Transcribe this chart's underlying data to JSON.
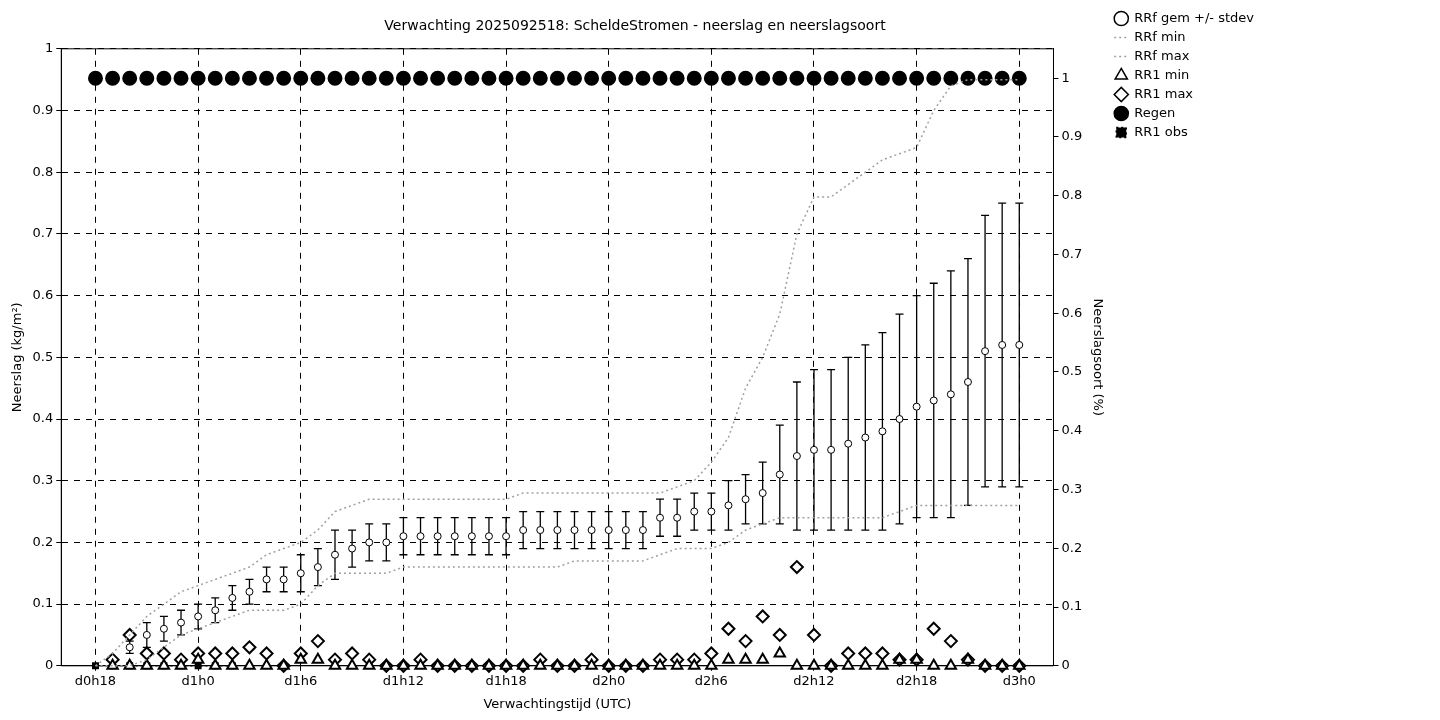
{
  "chart_data": {
    "type": "scatter",
    "title": "Verwachting 2025092518: ScheldeStromen - neerslag en neerslagsoort",
    "xlabel": "Verwachtingstijd (UTC)",
    "ylabel": "Neerslag (kg/m²)",
    "y2label": "Neerslagsoort (%)",
    "categories": [
      "d0h18",
      null,
      null,
      null,
      null,
      null,
      "d1h0",
      null,
      null,
      null,
      null,
      null,
      "d1h6",
      null,
      null,
      null,
      null,
      null,
      "d1h12",
      null,
      null,
      null,
      null,
      null,
      "d1h18",
      null,
      null,
      null,
      null,
      null,
      "d2h0",
      null,
      null,
      null,
      null,
      null,
      "d2h6",
      null,
      null,
      null,
      null,
      null,
      "d2h12",
      null,
      null,
      null,
      null,
      null,
      "d2h18",
      null,
      null,
      null,
      null,
      null,
      "d3h0"
    ],
    "ylim": [
      0,
      1
    ],
    "yticks": [
      0,
      0.1,
      0.2,
      0.3,
      0.4,
      0.5,
      0.6,
      0.7,
      0.8,
      0.9,
      1
    ],
    "y2lim": [
      0,
      1.05
    ],
    "y2ticks": [
      0,
      0.1,
      0.2,
      0.3,
      0.4,
      0.5,
      0.6,
      0.7,
      0.8,
      0.9,
      1
    ],
    "grid": true,
    "legend": "top right",
    "series": [
      {
        "name": "RRf gem +/- stdev",
        "marker": "circle",
        "color": "#000000",
        "values": [
          null,
          null,
          0.03,
          0.05,
          0.06,
          0.07,
          0.08,
          0.09,
          0.11,
          0.12,
          0.14,
          0.14,
          0.15,
          0.16,
          0.18,
          0.19,
          0.2,
          0.2,
          0.21,
          0.21,
          0.21,
          0.21,
          0.21,
          0.21,
          0.21,
          0.22,
          0.22,
          0.22,
          0.22,
          0.22,
          0.22,
          0.22,
          0.22,
          0.24,
          0.24,
          0.25,
          0.25,
          0.26,
          0.27,
          0.28,
          0.31,
          0.34,
          0.35,
          0.35,
          0.36,
          0.37,
          0.38,
          0.4,
          0.42,
          0.43,
          0.44,
          0.46,
          0.51,
          0.52,
          0.52
        ],
        "errors": [
          null,
          null,
          [
            0.02,
            0.04
          ],
          [
            0.03,
            0.07
          ],
          [
            0.04,
            0.08
          ],
          [
            0.05,
            0.09
          ],
          [
            0.06,
            0.1
          ],
          [
            0.07,
            0.11
          ],
          [
            0.09,
            0.13
          ],
          [
            0.1,
            0.14
          ],
          [
            0.12,
            0.16
          ],
          [
            0.12,
            0.16
          ],
          [
            0.12,
            0.18
          ],
          [
            0.13,
            0.19
          ],
          [
            0.14,
            0.22
          ],
          [
            0.16,
            0.22
          ],
          [
            0.17,
            0.23
          ],
          [
            0.17,
            0.23
          ],
          [
            0.18,
            0.24
          ],
          [
            0.18,
            0.24
          ],
          [
            0.18,
            0.24
          ],
          [
            0.18,
            0.24
          ],
          [
            0.18,
            0.24
          ],
          [
            0.18,
            0.24
          ],
          [
            0.18,
            0.24
          ],
          [
            0.19,
            0.25
          ],
          [
            0.19,
            0.25
          ],
          [
            0.19,
            0.25
          ],
          [
            0.19,
            0.25
          ],
          [
            0.19,
            0.25
          ],
          [
            0.19,
            0.25
          ],
          [
            0.19,
            0.25
          ],
          [
            0.19,
            0.25
          ],
          [
            0.21,
            0.27
          ],
          [
            0.21,
            0.27
          ],
          [
            0.22,
            0.28
          ],
          [
            0.22,
            0.28
          ],
          [
            0.22,
            0.3
          ],
          [
            0.23,
            0.31
          ],
          [
            0.23,
            0.33
          ],
          [
            0.23,
            0.39
          ],
          [
            0.22,
            0.46
          ],
          [
            0.22,
            0.48
          ],
          [
            0.22,
            0.48
          ],
          [
            0.22,
            0.5
          ],
          [
            0.22,
            0.52
          ],
          [
            0.22,
            0.54
          ],
          [
            0.23,
            0.57
          ],
          [
            0.24,
            0.6
          ],
          [
            0.24,
            0.62
          ],
          [
            0.24,
            0.64
          ],
          [
            0.26,
            0.66
          ],
          [
            0.29,
            0.73
          ],
          [
            0.29,
            0.75
          ],
          [
            0.29,
            0.75
          ]
        ]
      },
      {
        "name": "RRf min",
        "type": "line",
        "marker": "none",
        "line_style": "dotted",
        "color": "#a0a0a0",
        "values": [
          0,
          0,
          0,
          0.01,
          0.03,
          0.05,
          0.06,
          0.07,
          0.08,
          0.09,
          0.09,
          0.09,
          0.1,
          0.13,
          0.15,
          0.15,
          0.15,
          0.15,
          0.16,
          0.16,
          0.16,
          0.16,
          0.16,
          0.16,
          0.16,
          0.16,
          0.16,
          0.16,
          0.17,
          0.17,
          0.17,
          0.17,
          0.17,
          0.18,
          0.19,
          0.19,
          0.19,
          0.2,
          0.22,
          0.23,
          0.24,
          0.24,
          0.24,
          0.24,
          0.24,
          0.24,
          0.24,
          0.25,
          0.26,
          0.26,
          0.26,
          0.26,
          0.26,
          0.26,
          0.26
        ]
      },
      {
        "name": "RRf max",
        "type": "line",
        "marker": "none",
        "line_style": "dotted",
        "color": "#a0a0a0",
        "values": [
          0,
          0.02,
          0.05,
          0.08,
          0.1,
          0.12,
          0.13,
          0.14,
          0.15,
          0.16,
          0.18,
          0.19,
          0.2,
          0.22,
          0.25,
          0.26,
          0.27,
          0.27,
          0.27,
          0.27,
          0.27,
          0.27,
          0.27,
          0.27,
          0.27,
          0.28,
          0.28,
          0.28,
          0.28,
          0.28,
          0.28,
          0.28,
          0.28,
          0.28,
          0.29,
          0.3,
          0.33,
          0.37,
          0.45,
          0.5,
          0.57,
          0.7,
          0.76,
          0.76,
          0.78,
          0.8,
          0.82,
          0.83,
          0.84,
          0.9,
          0.94,
          0.95,
          0.95,
          0.95,
          0.95
        ]
      },
      {
        "name": "RR1 min",
        "marker": "triangle",
        "color": "#000000",
        "values": [
          null,
          0,
          0,
          0,
          0,
          0,
          0.01,
          0,
          0,
          0,
          0,
          0,
          0.01,
          0.01,
          0,
          0,
          0,
          0,
          0,
          0,
          0,
          0,
          0,
          0,
          0,
          0,
          0,
          0,
          0,
          0,
          0,
          0,
          0,
          0,
          0,
          0,
          0,
          0.01,
          0.01,
          0.01,
          0.02,
          0,
          0,
          0,
          0,
          0,
          0,
          0.01,
          0.01,
          0,
          0,
          0.01,
          0,
          0,
          0
        ]
      },
      {
        "name": "RR1 max",
        "marker": "diamond",
        "color": "#000000",
        "values": [
          null,
          0.01,
          0.05,
          0.02,
          0.02,
          0.01,
          0.02,
          0.02,
          0.02,
          0.03,
          0.02,
          0,
          0.02,
          0.04,
          0.01,
          0.02,
          0.01,
          0,
          0,
          0.01,
          0,
          0,
          0,
          0,
          0,
          0,
          0.01,
          0,
          0,
          0.01,
          0,
          0,
          0,
          0.01,
          0.01,
          0.01,
          0.02,
          0.06,
          0.04,
          0.08,
          0.05,
          0.16,
          0.05,
          0,
          0.02,
          0.02,
          0.02,
          0.01,
          0.01,
          0.06,
          0.04,
          0.01,
          0,
          0,
          0
        ]
      },
      {
        "name": "Regen",
        "marker": "circle",
        "axis": "y2",
        "color": "#000000",
        "values": [
          1,
          1,
          1,
          1,
          1,
          1,
          1,
          1,
          1,
          1,
          1,
          1,
          1,
          1,
          1,
          1,
          1,
          1,
          1,
          1,
          1,
          1,
          1,
          1,
          1,
          1,
          1,
          1,
          1,
          1,
          1,
          1,
          1,
          1,
          1,
          1,
          1,
          1,
          1,
          1,
          1,
          1,
          1,
          1,
          1,
          1,
          1,
          1,
          1,
          1,
          1,
          1,
          1,
          1,
          1
        ]
      },
      {
        "name": "RR1 obs",
        "type": "line",
        "marker": "square",
        "line_style": "dotted",
        "color": "#000000",
        "values": [
          0,
          0,
          0,
          0,
          0,
          0,
          0,
          0,
          0,
          null,
          null,
          null,
          null,
          null,
          null,
          null,
          null,
          null,
          null,
          null,
          null,
          null,
          null,
          null,
          null,
          null,
          null,
          null,
          null,
          null,
          null,
          null,
          null,
          null,
          null,
          null,
          null,
          null,
          null,
          null,
          null,
          null,
          null,
          null,
          null,
          null,
          null,
          null,
          null,
          null,
          null,
          null,
          null,
          null,
          null
        ]
      }
    ]
  }
}
